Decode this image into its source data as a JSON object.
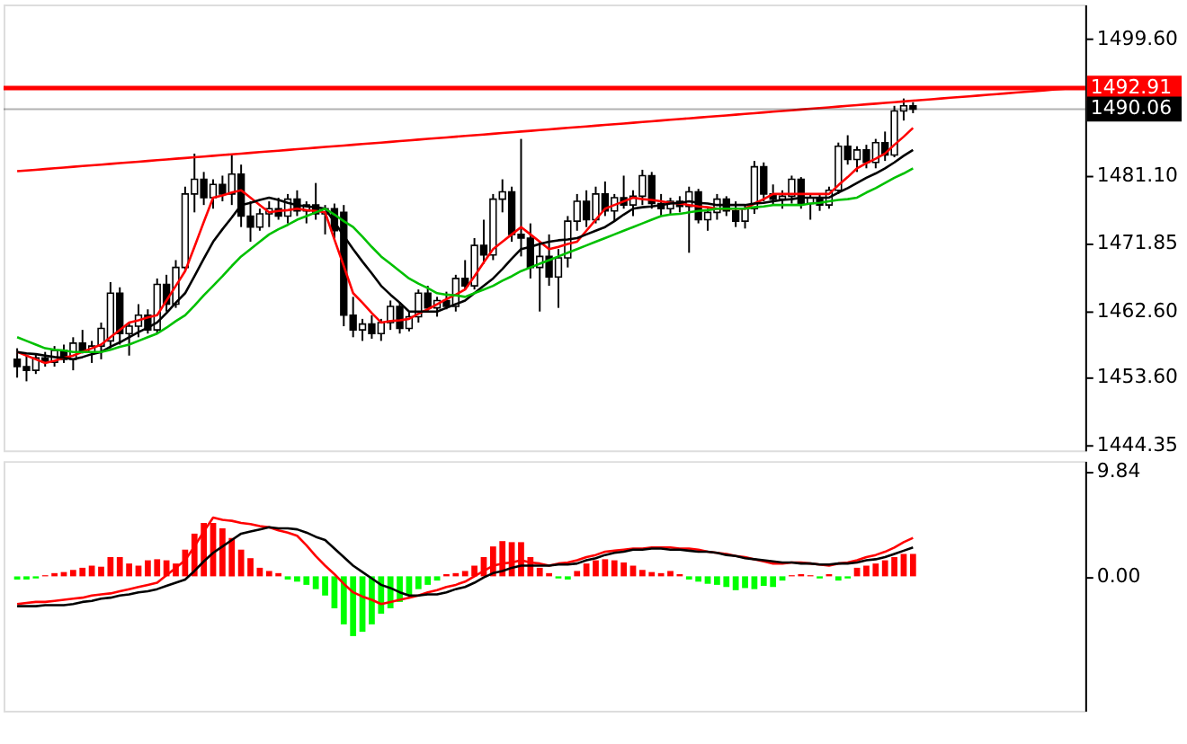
{
  "chart_data": [
    {
      "type": "candlestick",
      "categories": [
        null,
        null,
        null,
        null,
        null,
        null,
        null,
        null,
        null,
        null,
        null,
        null,
        null,
        null,
        null,
        null,
        null,
        null,
        null,
        null,
        null,
        null,
        null,
        null,
        null,
        null,
        null,
        null,
        null,
        null,
        null,
        null,
        null,
        null,
        null,
        null,
        null,
        null,
        null,
        null,
        null,
        null,
        null,
        null,
        null,
        null,
        null,
        null,
        null,
        null,
        null,
        null,
        null,
        null,
        null,
        null,
        null,
        null,
        null,
        null,
        null,
        null,
        null,
        null,
        null,
        null,
        null,
        null,
        null,
        null,
        null,
        null,
        null,
        null,
        null,
        null,
        null,
        null,
        null,
        null,
        null,
        null,
        null,
        null,
        null,
        null,
        null,
        null,
        null,
        null,
        null,
        null,
        null,
        null,
        null,
        null,
        null,
        null,
        null,
        null,
        null,
        null,
        null,
        null,
        null,
        null,
        null,
        null,
        null,
        null,
        null,
        null,
        null,
        null
      ],
      "ohlc": [
        [
          1456.0,
          1457.5,
          1453.5,
          1455.0
        ],
        [
          1455.0,
          1456.5,
          1453.0,
          1454.5
        ],
        [
          1454.5,
          1456.8,
          1454.0,
          1456.2
        ],
        [
          1456.2,
          1457.0,
          1455.0,
          1455.6
        ],
        [
          1455.6,
          1457.8,
          1455.0,
          1457.2
        ],
        [
          1457.2,
          1458.0,
          1455.5,
          1456.0
        ],
        [
          1456.0,
          1459.0,
          1454.5,
          1458.2
        ],
        [
          1458.2,
          1460.0,
          1456.8,
          1457.0
        ],
        [
          1457.0,
          1458.5,
          1455.5,
          1457.8
        ],
        [
          1457.8,
          1461.0,
          1456.0,
          1460.2
        ],
        [
          1458.5,
          1466.5,
          1457.5,
          1465.0
        ],
        [
          1465.0,
          1465.8,
          1458.0,
          1459.5
        ],
        [
          1459.5,
          1461.0,
          1456.5,
          1460.5
        ],
        [
          1460.5,
          1463.5,
          1459.0,
          1462.0
        ],
        [
          1462.0,
          1462.8,
          1459.5,
          1460.0
        ],
        [
          1460.0,
          1467.0,
          1459.5,
          1466.2
        ],
        [
          1466.2,
          1467.5,
          1462.5,
          1463.5
        ],
        [
          1463.5,
          1469.5,
          1463.0,
          1468.5
        ],
        [
          1468.5,
          1479.5,
          1468.0,
          1478.5
        ],
        [
          1478.5,
          1484.0,
          1476.0,
          1480.5
        ],
        [
          1480.5,
          1481.5,
          1477.0,
          1478.0
        ],
        [
          1478.0,
          1480.5,
          1476.5,
          1479.8
        ],
        [
          1479.8,
          1481.0,
          1477.5,
          1478.5
        ],
        [
          1478.5,
          1483.8,
          1477.0,
          1481.2
        ],
        [
          1481.2,
          1482.5,
          1474.0,
          1475.5
        ],
        [
          1475.5,
          1477.5,
          1472.0,
          1474.0
        ],
        [
          1474.0,
          1476.5,
          1473.5,
          1475.8
        ],
        [
          1475.8,
          1477.5,
          1474.0,
          1476.5
        ],
        [
          1476.5,
          1478.0,
          1475.0,
          1475.5
        ],
        [
          1475.5,
          1478.5,
          1474.5,
          1477.8
        ],
        [
          1477.8,
          1479.0,
          1475.5,
          1476.2
        ],
        [
          1476.2,
          1477.5,
          1474.5,
          1477.0
        ],
        [
          1477.0,
          1480.0,
          1475.0,
          1475.8
        ],
        [
          1475.8,
          1477.0,
          1473.0,
          1476.5
        ],
        [
          1476.5,
          1477.2,
          1472.5,
          1473.5
        ],
        [
          1476.0,
          1477.0,
          1460.5,
          1462.0
        ],
        [
          1462.0,
          1464.5,
          1459.0,
          1460.0
        ],
        [
          1460.0,
          1461.5,
          1458.5,
          1460.8
        ],
        [
          1460.8,
          1462.0,
          1458.8,
          1459.5
        ],
        [
          1459.5,
          1461.5,
          1458.5,
          1461.0
        ],
        [
          1461.0,
          1464.0,
          1460.0,
          1463.2
        ],
        [
          1463.2,
          1463.8,
          1459.5,
          1460.2
        ],
        [
          1460.2,
          1462.5,
          1459.8,
          1461.8
        ],
        [
          1461.8,
          1465.5,
          1461.0,
          1465.0
        ],
        [
          1465.0,
          1466.0,
          1462.5,
          1463.0
        ],
        [
          1463.0,
          1464.5,
          1461.8,
          1464.0
        ],
        [
          1464.0,
          1465.2,
          1462.8,
          1463.2
        ],
        [
          1463.2,
          1467.5,
          1462.5,
          1467.0
        ],
        [
          1467.0,
          1469.5,
          1465.5,
          1466.0
        ],
        [
          1466.0,
          1472.5,
          1465.5,
          1471.5
        ],
        [
          1471.5,
          1475.0,
          1469.0,
          1470.2
        ],
        [
          1470.2,
          1478.5,
          1469.5,
          1477.8
        ],
        [
          1477.8,
          1480.5,
          1476.0,
          1478.8
        ],
        [
          1478.8,
          1479.5,
          1472.0,
          1473.0
        ],
        [
          1473.0,
          1486.0,
          1470.0,
          1472.5
        ],
        [
          1472.5,
          1474.5,
          1467.0,
          1468.5
        ],
        [
          1468.5,
          1472.0,
          1462.5,
          1470.0
        ],
        [
          1470.0,
          1473.0,
          1466.0,
          1467.2
        ],
        [
          1467.2,
          1471.0,
          1463.0,
          1469.8
        ],
        [
          1469.8,
          1475.5,
          1468.5,
          1474.8
        ],
        [
          1474.8,
          1478.5,
          1473.5,
          1477.5
        ],
        [
          1477.5,
          1479.0,
          1474.0,
          1475.0
        ],
        [
          1475.0,
          1479.5,
          1474.5,
          1478.5
        ],
        [
          1478.5,
          1480.2,
          1475.5,
          1476.2
        ],
        [
          1476.2,
          1478.5,
          1474.8,
          1478.0
        ],
        [
          1478.0,
          1481.0,
          1476.5,
          1477.0
        ],
        [
          1477.0,
          1479.0,
          1475.5,
          1478.2
        ],
        [
          1478.2,
          1481.8,
          1477.0,
          1481.0
        ],
        [
          1481.0,
          1481.5,
          1476.5,
          1477.2
        ],
        [
          1477.2,
          1478.5,
          1475.5,
          1476.5
        ],
        [
          1476.5,
          1478.0,
          1475.8,
          1477.5
        ],
        [
          1477.5,
          1478.2,
          1476.0,
          1476.8
        ],
        [
          1476.8,
          1479.5,
          1470.5,
          1478.8
        ],
        [
          1478.8,
          1479.2,
          1474.5,
          1475.0
        ],
        [
          1475.0,
          1476.5,
          1473.5,
          1476.0
        ],
        [
          1476.0,
          1478.5,
          1475.0,
          1477.8
        ],
        [
          1477.8,
          1478.2,
          1475.5,
          1476.2
        ],
        [
          1476.2,
          1477.5,
          1474.0,
          1474.8
        ],
        [
          1474.8,
          1477.0,
          1473.8,
          1476.5
        ],
        [
          1476.5,
          1483.0,
          1475.8,
          1482.2
        ],
        [
          1482.2,
          1482.8,
          1477.5,
          1478.5
        ],
        [
          1478.5,
          1479.8,
          1477.0,
          1477.8
        ],
        [
          1477.8,
          1479.0,
          1476.5,
          1478.2
        ],
        [
          1478.2,
          1481.0,
          1477.2,
          1480.5
        ],
        [
          1480.5,
          1480.8,
          1476.5,
          1477.2
        ],
        [
          1477.2,
          1478.5,
          1475.0,
          1478.0
        ],
        [
          1478.0,
          1478.5,
          1476.2,
          1477.0
        ],
        [
          1477.0,
          1479.5,
          1476.5,
          1479.0
        ],
        [
          1479.0,
          1485.5,
          1478.5,
          1485.0
        ],
        [
          1485.0,
          1486.5,
          1482.5,
          1483.2
        ],
        [
          1483.2,
          1485.0,
          1481.5,
          1484.5
        ],
        [
          1484.5,
          1485.2,
          1482.0,
          1482.8
        ],
        [
          1482.8,
          1486.0,
          1482.0,
          1485.5
        ],
        [
          1485.5,
          1487.0,
          1483.0,
          1483.8
        ],
        [
          1483.8,
          1490.5,
          1483.5,
          1489.8
        ],
        [
          1489.8,
          1491.5,
          1488.5,
          1490.5
        ],
        [
          1490.5,
          1491.0,
          1489.5,
          1490.06
        ],
        null,
        null,
        null,
        null,
        null,
        null,
        null,
        null,
        null,
        null,
        null,
        null,
        null,
        null,
        null,
        null,
        null
      ],
      "series": [
        {
          "type": "line",
          "color": "#ff0000",
          "values": [
            1457,
            1456.5,
            1456,
            1455.5,
            1455.8,
            1456.2,
            1456.5,
            1457,
            1457.5,
            1458,
            1459,
            1460,
            1461,
            1461.3,
            1461.7,
            1462,
            1464,
            1466,
            1468,
            1471.3,
            1474.7,
            1478,
            1478.3,
            1478.7,
            1479,
            1478,
            1477,
            1476,
            1476.2,
            1476.3,
            1476.5,
            1476.3,
            1476.2,
            1476,
            1472.3,
            1468.7,
            1465,
            1463.7,
            1462.3,
            1461,
            1461.2,
            1461.3,
            1461.5,
            1462.2,
            1462.8,
            1463.5,
            1464.2,
            1464.8,
            1465.5,
            1467.3,
            1469.2,
            1471,
            1472,
            1473,
            1474,
            1473,
            1472,
            1471,
            1471.3,
            1471.7,
            1472,
            1473.5,
            1475,
            1476.5,
            1477,
            1477.5,
            1478,
            1477.8,
            1477.7,
            1477.5,
            1477.3,
            1477.2,
            1477,
            1476.8,
            1476.7,
            1476.5,
            1476.5,
            1476.5,
            1476.5,
            1477.2,
            1477.8,
            1478.5,
            1478.5,
            1478.5,
            1478.5,
            1478.5,
            1478.5,
            1478.5,
            1479.7,
            1480.8,
            1482,
            1482.7,
            1483.3,
            1484,
            1485.2,
            1486.3,
            1487.5,
            null,
            null,
            null,
            null,
            null,
            null,
            null,
            null,
            null,
            null,
            null,
            null,
            null,
            null,
            null,
            null,
            null
          ]
        },
        {
          "type": "line",
          "color": "#000000",
          "values": [
            1457,
            1456.8,
            1456.7,
            1456.5,
            1456.3,
            1456.2,
            1456,
            1456.3,
            1456.7,
            1457,
            1457.7,
            1458.3,
            1459,
            1459.7,
            1460.3,
            1461,
            1462.3,
            1463.7,
            1465,
            1467.3,
            1469.7,
            1472,
            1473.7,
            1475.3,
            1477,
            1477.3,
            1477.7,
            1478,
            1477.7,
            1477.3,
            1477,
            1476.8,
            1476.7,
            1476.5,
            1474.7,
            1472.8,
            1471,
            1469.3,
            1467.7,
            1466,
            1464.8,
            1463.7,
            1462.5,
            1462.5,
            1462.5,
            1462.5,
            1463,
            1463.5,
            1464,
            1465,
            1466,
            1467,
            1468.3,
            1469.7,
            1471,
            1471.3,
            1471.7,
            1472,
            1472.2,
            1472.3,
            1472.5,
            1473,
            1473.5,
            1474,
            1474.8,
            1475.7,
            1476.5,
            1476.7,
            1476.8,
            1477,
            1477.2,
            1477.3,
            1477.5,
            1477.3,
            1477.2,
            1477,
            1477,
            1477,
            1477,
            1477.2,
            1477.3,
            1477.5,
            1477.7,
            1477.8,
            1478,
            1478,
            1478,
            1478,
            1478.7,
            1479.3,
            1480,
            1480.7,
            1481.3,
            1482,
            1482.8,
            1483.7,
            1484.5,
            null,
            null,
            null,
            null,
            null,
            null,
            null,
            null,
            null,
            null,
            null,
            null,
            null,
            null,
            null,
            null,
            null
          ]
        },
        {
          "type": "line",
          "color": "#00c000",
          "values": [
            1459,
            1458.5,
            1458,
            1457.5,
            1457.3,
            1457.2,
            1457,
            1457,
            1457,
            1457,
            1457.3,
            1457.7,
            1458,
            1458.5,
            1459,
            1459.5,
            1460.3,
            1461.2,
            1462,
            1463.3,
            1464.7,
            1466,
            1467.3,
            1468.7,
            1470,
            1471,
            1472,
            1473,
            1473.7,
            1474.3,
            1475,
            1475.5,
            1476,
            1476.5,
            1475.7,
            1474.8,
            1474,
            1472.7,
            1471.3,
            1470,
            1469,
            1468,
            1467,
            1466.3,
            1465.7,
            1465,
            1464.8,
            1464.7,
            1464.5,
            1465,
            1465.5,
            1466,
            1466.7,
            1467.3,
            1468,
            1468.5,
            1469,
            1469.5,
            1470,
            1470.5,
            1471,
            1471.5,
            1472,
            1472.5,
            1473,
            1473.5,
            1474,
            1474.5,
            1475,
            1475.5,
            1475.7,
            1475.8,
            1476,
            1476.2,
            1476.3,
            1476.5,
            1476.5,
            1476.5,
            1476.5,
            1476.7,
            1476.8,
            1477,
            1477,
            1477,
            1477,
            1477.2,
            1477.3,
            1477.5,
            1477.7,
            1477.8,
            1478,
            1478.7,
            1479.3,
            1480,
            1480.7,
            1481.3,
            1482,
            null,
            null,
            null,
            null,
            null,
            null,
            null,
            null,
            null,
            null,
            null,
            null,
            null,
            null,
            null,
            null,
            null
          ]
        },
        {
          "type": "line",
          "color": "#ff0000",
          "values": [
            1481.6,
            1481.7,
            1481.8,
            1481.9,
            1482.0,
            1482.1,
            1482.2,
            1482.3,
            1482.4,
            1482.5,
            1482.6,
            1482.7,
            1482.8,
            1482.9,
            1483.0,
            1483.1,
            1483.2,
            1483.3,
            1483.4,
            1483.5,
            1483.6,
            1483.7,
            1483.8,
            1483.9,
            1484.0,
            1484.1,
            1484.2,
            1484.3,
            1484.4,
            1484.5,
            1484.6,
            1484.7,
            1484.8,
            1484.9,
            1485.0,
            1485.1,
            1485.2,
            1485.3,
            1485.4,
            1485.5,
            1485.6,
            1485.7,
            1485.8,
            1485.9,
            1486.0,
            1486.1,
            1486.2,
            1486.3,
            1486.4,
            1486.5,
            1486.6,
            1486.7,
            1486.8,
            1486.9,
            1487.0,
            1487.1,
            1487.2,
            1487.3,
            1487.4,
            1487.5,
            1487.6,
            1487.7,
            1487.8,
            1487.9,
            1488.0,
            1488.1,
            1488.2,
            1488.3,
            1488.4,
            1488.5,
            1488.6,
            1488.7,
            1488.8,
            1488.9,
            1489.0,
            1489.1,
            1489.2,
            1489.3,
            1489.4,
            1489.5,
            1489.6,
            1489.7,
            1489.8,
            1489.9,
            1490.0,
            1490.1,
            1490.2,
            1490.3,
            1490.4,
            1490.5,
            1490.6,
            1490.7,
            1490.8,
            1490.9,
            1491.0,
            1491.1,
            1491.2,
            1491.3,
            1491.4,
            1491.5,
            1491.6,
            1491.7,
            1491.8,
            1491.9,
            1492.0,
            1492.1,
            1492.2,
            1492.3,
            1492.4,
            1492.5,
            1492.6,
            1492.7,
            1492.8,
            1492.9
          ]
        }
      ],
      "ref_lines": [
        {
          "axis": "y",
          "value": 1492.91,
          "label": "1492.91",
          "color": "#ff0000"
        },
        {
          "axis": "y",
          "value": 1490.06,
          "label": "1490.06",
          "color": "#000000"
        }
      ],
      "ylim": [
        1443.6,
        1504.3
      ],
      "yticks": [
        {
          "value": 1444.35,
          "label": "1444.35"
        },
        {
          "value": 1453.6,
          "label": "1453.60"
        },
        {
          "value": 1462.6,
          "label": "1462.60"
        },
        {
          "value": 1471.85,
          "label": "1471.85"
        },
        {
          "value": 1481.1,
          "label": "1481.10"
        },
        {
          "value": 1499.6,
          "label": "1499.60"
        }
      ],
      "tick_labels": "y"
    },
    {
      "type": "bar",
      "categories": [
        null,
        null,
        null,
        null,
        null,
        null,
        null,
        null,
        null,
        null,
        null,
        null,
        null,
        null,
        null,
        null,
        null,
        null,
        null,
        null,
        null,
        null,
        null,
        null,
        null,
        null,
        null,
        null,
        null,
        null,
        null,
        null,
        null,
        null,
        null,
        null,
        null,
        null,
        null,
        null,
        null,
        null,
        null,
        null,
        null,
        null,
        null,
        null,
        null,
        null,
        null,
        null,
        null,
        null,
        null,
        null,
        null,
        null,
        null,
        null,
        null,
        null,
        null,
        null,
        null,
        null,
        null,
        null,
        null,
        null,
        null,
        null,
        null,
        null,
        null,
        null,
        null,
        null,
        null,
        null,
        null,
        null,
        null,
        null,
        null,
        null,
        null,
        null,
        null,
        null,
        null,
        null,
        null,
        null,
        null,
        null,
        null,
        null,
        null,
        null,
        null,
        null,
        null,
        null,
        null,
        null,
        null,
        null,
        null,
        null,
        null,
        null,
        null,
        null
      ],
      "values": [
        -0.3,
        -0.3,
        -0.2,
        0.1,
        0.3,
        0.4,
        0.6,
        0.8,
        1.0,
        0.9,
        1.8,
        1.8,
        1.2,
        1.0,
        1.5,
        1.6,
        1.5,
        1.2,
        2.5,
        4.0,
        5.0,
        5.0,
        4.5,
        3.6,
        2.5,
        1.7,
        0.8,
        0.5,
        0.3,
        -0.3,
        -0.5,
        -0.8,
        -1.2,
        -1.8,
        -3.0,
        -4.5,
        -5.6,
        -5.2,
        -4.5,
        -3.5,
        -3.0,
        -2.4,
        -1.8,
        -1.2,
        -0.8,
        -0.4,
        0.2,
        0.3,
        0.5,
        1.0,
        1.8,
        2.8,
        3.3,
        3.2,
        3.2,
        1.8,
        0.8,
        0.3,
        -0.2,
        -0.3,
        0.5,
        1.2,
        1.5,
        1.6,
        1.5,
        1.3,
        1.0,
        0.6,
        0.4,
        0.3,
        0.5,
        0.2,
        -0.3,
        -0.5,
        -0.7,
        -0.8,
        -1.0,
        -1.3,
        -1.1,
        -1.2,
        -0.9,
        -1.0,
        -0.4,
        0.1,
        0.2,
        0.1,
        -0.2,
        0.2,
        -0.4,
        -0.2,
        0.8,
        1.0,
        1.2,
        1.5,
        1.8,
        2.1,
        2.1,
        null,
        null,
        null,
        null,
        null,
        null,
        null,
        null,
        null,
        null,
        null,
        null,
        null,
        null,
        null,
        null,
        null
      ],
      "colors": [
        "#00ff00",
        "#00ff00",
        "#00ff00",
        "#ff0000",
        "#ff0000",
        "#ff0000",
        "#ff0000",
        "#ff0000",
        "#ff0000",
        "#ff0000",
        "#ff0000",
        "#ff0000",
        "#ff0000",
        "#ff0000",
        "#ff0000",
        "#ff0000",
        "#ff0000",
        "#ff0000",
        "#ff0000",
        "#ff0000",
        "#ff0000",
        "#ff0000",
        "#ff0000",
        "#ff0000",
        "#ff0000",
        "#ff0000",
        "#ff0000",
        "#ff0000",
        "#ff0000",
        "#00ff00",
        "#00ff00",
        "#00ff00",
        "#00ff00",
        "#00ff00",
        "#00ff00",
        "#00ff00",
        "#00ff00",
        "#00ff00",
        "#00ff00",
        "#00ff00",
        "#00ff00",
        "#00ff00",
        "#00ff00",
        "#00ff00",
        "#00ff00",
        "#00ff00",
        "#ff0000",
        "#ff0000",
        "#ff0000",
        "#ff0000",
        "#ff0000",
        "#ff0000",
        "#ff0000",
        "#ff0000",
        "#ff0000",
        "#ff0000",
        "#ff0000",
        "#ff0000",
        "#00ff00",
        "#00ff00",
        "#ff0000",
        "#ff0000",
        "#ff0000",
        "#ff0000",
        "#ff0000",
        "#ff0000",
        "#ff0000",
        "#ff0000",
        "#ff0000",
        "#ff0000",
        "#ff0000",
        "#ff0000",
        "#00ff00",
        "#00ff00",
        "#00ff00",
        "#00ff00",
        "#00ff00",
        "#00ff00",
        "#00ff00",
        "#00ff00",
        "#00ff00",
        "#00ff00",
        "#00ff00",
        "#ff0000",
        "#ff0000",
        "#ff0000",
        "#00ff00",
        "#ff0000",
        "#00ff00",
        "#00ff00",
        "#ff0000",
        "#ff0000",
        "#ff0000",
        "#ff0000",
        "#ff0000",
        "#ff0000",
        "#ff0000",
        null,
        null,
        null,
        null,
        null,
        null,
        null,
        null,
        null,
        null,
        null,
        null,
        null,
        null,
        null,
        null,
        null
      ],
      "series": [
        {
          "type": "line",
          "color": "#ff0000",
          "values": [
            -2.6,
            -2.5,
            -2.4,
            -2.4,
            -2.3,
            -2.2,
            -2.1,
            -2.0,
            -1.8,
            -1.7,
            -1.6,
            -1.4,
            -1.2,
            -1.0,
            -0.8,
            -0.6,
            0.1,
            0.8,
            1.5,
            2.8,
            4.2,
            5.5,
            5.3,
            5.2,
            5.0,
            4.9,
            4.7,
            4.6,
            4.3,
            4.1,
            3.8,
            2.9,
            1.9,
            1.0,
            0.2,
            -0.7,
            -1.5,
            -1.9,
            -2.2,
            -2.6,
            -2.4,
            -2.2,
            -2.0,
            -1.8,
            -1.5,
            -1.3,
            -1.0,
            -0.8,
            -0.5,
            0.0,
            0.5,
            1.0,
            1.2,
            1.3,
            1.5,
            1.3,
            1.2,
            1.0,
            1.2,
            1.3,
            1.5,
            1.8,
            2.0,
            2.3,
            2.4,
            2.5,
            2.6,
            2.6,
            2.7,
            2.7,
            2.7,
            2.6,
            2.6,
            2.5,
            2.3,
            2.2,
            2.1,
            1.9,
            1.8,
            1.6,
            1.4,
            1.2,
            1.2,
            1.3,
            1.3,
            1.2,
            1.1,
            1.0,
            1.2,
            1.3,
            1.5,
            1.8,
            2.0,
            2.3,
            2.7,
            3.2,
            3.6,
            null,
            null,
            null,
            null,
            null,
            null,
            null,
            null,
            null,
            null,
            null,
            null,
            null,
            null,
            null,
            null,
            null
          ]
        },
        {
          "type": "line",
          "color": "#000000",
          "values": [
            -2.8,
            -2.8,
            -2.8,
            -2.7,
            -2.7,
            -2.7,
            -2.6,
            -2.4,
            -2.3,
            -2.1,
            -2.0,
            -1.8,
            -1.7,
            -1.5,
            -1.4,
            -1.2,
            -0.9,
            -0.6,
            -0.3,
            0.5,
            1.4,
            2.2,
            2.8,
            3.4,
            4.0,
            4.2,
            4.4,
            4.6,
            4.5,
            4.5,
            4.4,
            4.1,
            3.7,
            3.4,
            2.6,
            1.8,
            1.0,
            0.4,
            -0.2,
            -0.8,
            -1.1,
            -1.5,
            -1.8,
            -1.8,
            -1.7,
            -1.7,
            -1.5,
            -1.2,
            -1.0,
            -0.6,
            -0.1,
            0.3,
            0.5,
            0.8,
            1.0,
            1.0,
            1.0,
            1.0,
            1.1,
            1.1,
            1.2,
            1.5,
            1.7,
            2.0,
            2.2,
            2.3,
            2.5,
            2.5,
            2.6,
            2.6,
            2.5,
            2.5,
            2.4,
            2.3,
            2.3,
            2.2,
            2.0,
            1.9,
            1.7,
            1.6,
            1.5,
            1.4,
            1.3,
            1.3,
            1.2,
            1.2,
            1.1,
            1.1,
            1.2,
            1.2,
            1.3,
            1.5,
            1.6,
            1.8,
            2.1,
            2.4,
            2.7,
            null,
            null,
            null,
            null,
            null,
            null,
            null,
            null,
            null,
            null,
            null,
            null,
            null,
            null,
            null,
            null,
            null
          ]
        }
      ],
      "ylim": [
        -12.6,
        10.8
      ],
      "yticks": [
        {
          "value": 0,
          "label": "0.00"
        },
        {
          "value": 9.84,
          "label": "9.84"
        }
      ],
      "tick_labels": "y"
    }
  ]
}
